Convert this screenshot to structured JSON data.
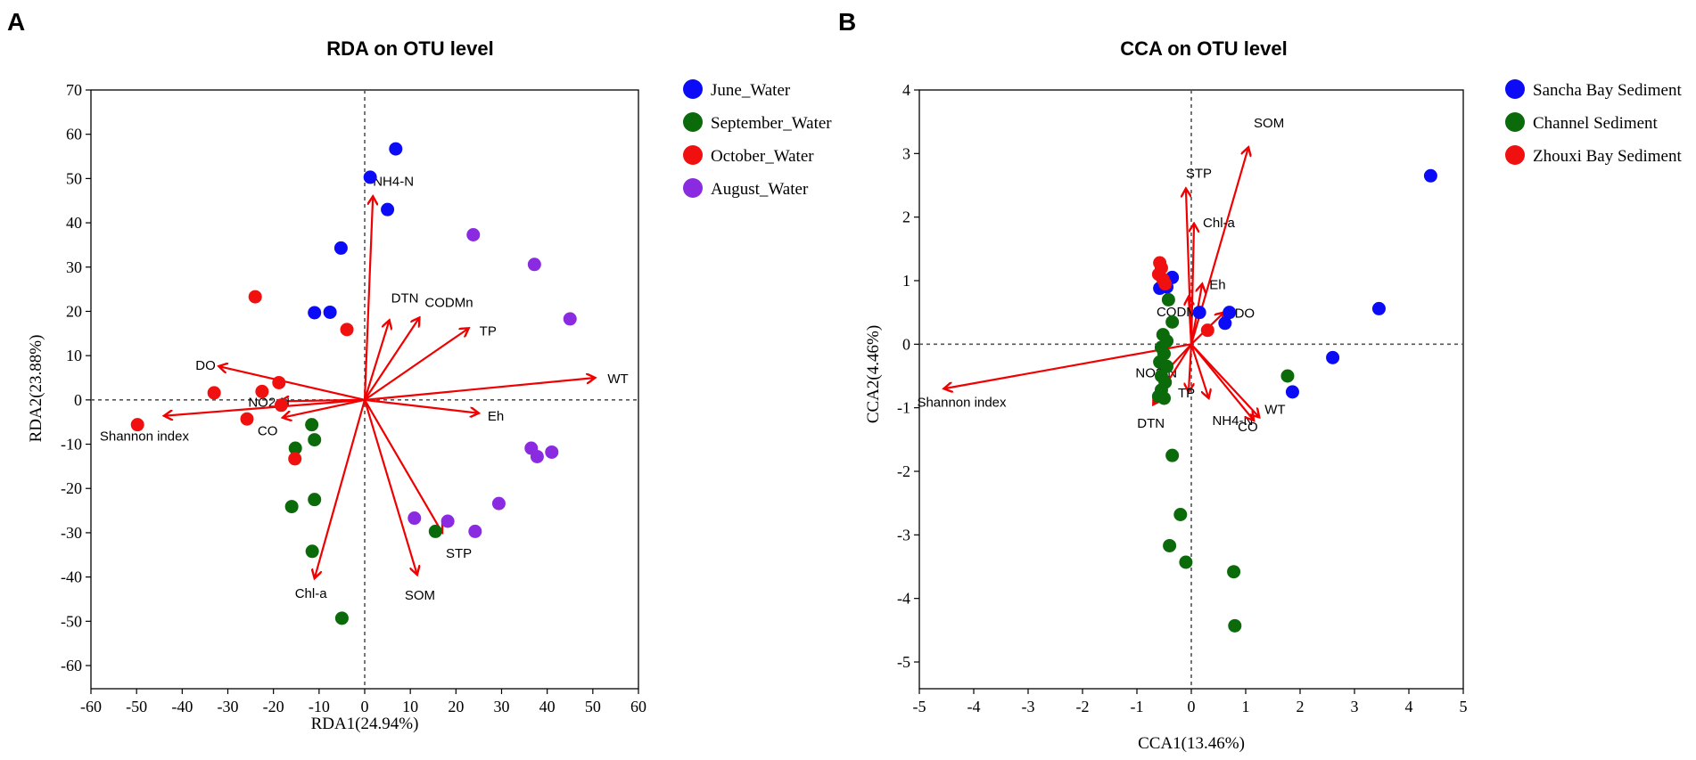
{
  "chart_data": [
    {
      "panel": "A",
      "type": "scatter",
      "title": "RDA on OTU level",
      "xlabel": "RDA1(24.94%)",
      "ylabel": "RDA2(23.88%)",
      "xlim": [
        -60,
        60
      ],
      "ylim": [
        -65,
        70
      ],
      "xticks": [
        -60,
        -50,
        -40,
        -30,
        -20,
        -10,
        0,
        10,
        20,
        30,
        40,
        50,
        60
      ],
      "yticks": [
        -60,
        -50,
        -40,
        -30,
        -20,
        -10,
        0,
        10,
        20,
        30,
        40,
        50,
        60,
        70
      ],
      "series": [
        {
          "name": "June_Water",
          "color": "#0b0bf5",
          "points": [
            [
              1.2,
              50.3
            ],
            [
              5,
              43
            ],
            [
              6.8,
              56.7
            ],
            [
              -5.2,
              34.3
            ],
            [
              -11,
              19.7
            ],
            [
              -7.6,
              19.8
            ]
          ]
        },
        {
          "name": "September_Water",
          "color": "#0b6b0b",
          "points": [
            [
              -11.6,
              -5.6
            ],
            [
              -15.2,
              -10.9
            ],
            [
              -11,
              -9
            ],
            [
              -11,
              -22.5
            ],
            [
              -16,
              -24.1
            ],
            [
              -11.5,
              -34.2
            ],
            [
              -5,
              -49.3
            ],
            [
              15.5,
              -29.7
            ]
          ]
        },
        {
          "name": "October_Water",
          "color": "#f01010",
          "points": [
            [
              -24,
              23.3
            ],
            [
              -3.9,
              15.9
            ],
            [
              -33,
              1.6
            ],
            [
              -18.8,
              3.9
            ],
            [
              -22.5,
              1.9
            ],
            [
              -18.3,
              -1.2
            ],
            [
              -25.8,
              -4.3
            ],
            [
              -15.3,
              -13.3
            ],
            [
              -49.8,
              -5.6
            ]
          ]
        },
        {
          "name": "August_Water",
          "color": "#8a2be2",
          "points": [
            [
              23.8,
              37.3
            ],
            [
              37.2,
              30.6
            ],
            [
              45,
              18.3
            ],
            [
              36.5,
              -10.9
            ],
            [
              37.8,
              -12.8
            ],
            [
              41,
              -11.8
            ],
            [
              10.9,
              -26.7
            ],
            [
              18.2,
              -27.4
            ],
            [
              24.2,
              -29.7
            ],
            [
              29.4,
              -23.4
            ]
          ]
        }
      ],
      "vectors": [
        {
          "label": "NH4-N",
          "x": 1.8,
          "y": 46
        },
        {
          "label": "DTN",
          "x": 5.4,
          "y": 18
        },
        {
          "label": "CODMn",
          "x": 12,
          "y": 18.6
        },
        {
          "label": "TP",
          "x": 22.8,
          "y": 16.2
        },
        {
          "label": "WT",
          "x": 50.5,
          "y": 5
        },
        {
          "label": "Eh",
          "x": 25,
          "y": -3
        },
        {
          "label": "STP",
          "x": 17,
          "y": -30
        },
        {
          "label": "SOM",
          "x": 11.5,
          "y": -39.5
        },
        {
          "label": "Chl-a",
          "x": -11,
          "y": -40.3
        },
        {
          "label": "DO",
          "x": -32,
          "y": 7.6
        },
        {
          "label": "NO2-N",
          "x": -18.5,
          "y": -0.3
        },
        {
          "label": "CO",
          "x": -18,
          "y": -4
        },
        {
          "label": "Shannon index",
          "x": -44,
          "y": -3.6
        }
      ]
    },
    {
      "panel": "B",
      "type": "scatter",
      "title": "CCA on OTU level",
      "xlabel": "CCA1(13.46%)",
      "ylabel": "CCA2(4.46%)",
      "xlim": [
        -5,
        5
      ],
      "ylim": [
        -5.3,
        4
      ],
      "xticks": [
        -5,
        -4,
        -3,
        -2,
        -1,
        0,
        1,
        2,
        3,
        4,
        5
      ],
      "yticks": [
        -5,
        -4,
        -3,
        -2,
        -1,
        0,
        1,
        2,
        3,
        4
      ],
      "series": [
        {
          "name": "Sancha Bay Sediment",
          "color": "#0b0bf5",
          "points": [
            [
              4.4,
              2.65
            ],
            [
              3.45,
              0.56
            ],
            [
              2.6,
              -0.21
            ],
            [
              1.86,
              -0.75
            ],
            [
              0.7,
              0.5
            ],
            [
              0.62,
              0.33
            ],
            [
              0.15,
              0.5
            ],
            [
              -0.35,
              1.05
            ],
            [
              -0.45,
              0.9
            ],
            [
              -0.58,
              0.88
            ]
          ]
        },
        {
          "name": "Channel Sediment",
          "color": "#0b6b0b",
          "points": [
            [
              -0.42,
              0.7
            ],
            [
              -0.35,
              0.35
            ],
            [
              -0.52,
              0.15
            ],
            [
              -0.45,
              0.05
            ],
            [
              -0.55,
              -0.05
            ],
            [
              -0.5,
              -0.15
            ],
            [
              -0.58,
              -0.28
            ],
            [
              -0.45,
              -0.35
            ],
            [
              -0.55,
              -0.5
            ],
            [
              -0.48,
              -0.6
            ],
            [
              -0.55,
              -0.72
            ],
            [
              -0.6,
              -0.82
            ],
            [
              -0.5,
              -0.85
            ],
            [
              1.77,
              -0.5
            ],
            [
              -0.35,
              -1.75
            ],
            [
              -0.2,
              -2.68
            ],
            [
              -0.4,
              -3.17
            ],
            [
              -0.1,
              -3.43
            ],
            [
              0.78,
              -3.58
            ],
            [
              0.8,
              -4.43
            ]
          ]
        },
        {
          "name": "Zhouxi Bay Sediment",
          "color": "#f01010",
          "points": [
            [
              -0.58,
              1.28
            ],
            [
              -0.55,
              1.2
            ],
            [
              -0.6,
              1.1
            ],
            [
              -0.52,
              1.02
            ],
            [
              -0.48,
              0.95
            ],
            [
              0.3,
              0.22
            ]
          ]
        }
      ],
      "vectors": [
        {
          "label": "SOM",
          "x": 1.05,
          "y": 3.1
        },
        {
          "label": "STP",
          "x": -0.1,
          "y": 2.45
        },
        {
          "label": "Chl-a",
          "x": 0.05,
          "y": 1.9
        },
        {
          "label": "Eh",
          "x": 0.2,
          "y": 0.95
        },
        {
          "label": "CODMn",
          "x": -0.05,
          "y": 0.75
        },
        {
          "label": "DO",
          "x": 0.6,
          "y": 0.5
        },
        {
          "label": "Shannon index",
          "x": -4.55,
          "y": -0.7
        },
        {
          "label": "NO2-N",
          "x": -0.6,
          "y": -0.55
        },
        {
          "label": "DTN",
          "x": -0.7,
          "y": -0.95
        },
        {
          "label": "TP",
          "x": -0.05,
          "y": -0.75
        },
        {
          "label": "NH4-N",
          "x": 0.32,
          "y": -0.85
        },
        {
          "label": "WT",
          "x": 1.25,
          "y": -1.15
        },
        {
          "label": "CO",
          "x": 1.15,
          "y": -1.2
        }
      ]
    }
  ]
}
